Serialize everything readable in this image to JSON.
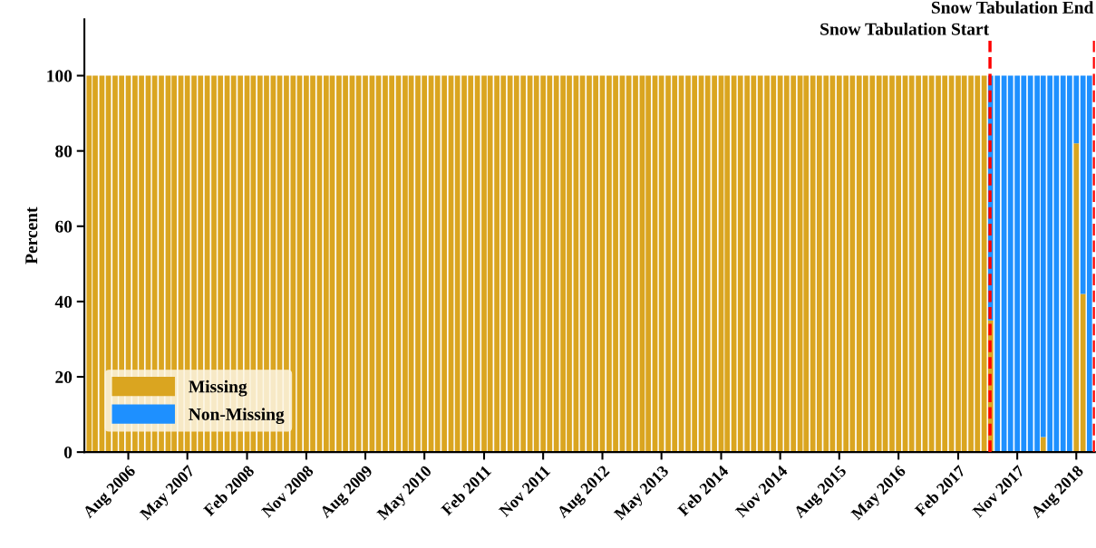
{
  "chart_data": {
    "type": "bar",
    "stacked": true,
    "ylabel": "Percent",
    "x": [
      "2006-02",
      "2006-03",
      "2006-04",
      "2006-05",
      "2006-06",
      "2006-07",
      "2006-08",
      "2006-09",
      "2006-10",
      "2006-11",
      "2006-12",
      "2007-01",
      "2007-02",
      "2007-03",
      "2007-04",
      "2007-05",
      "2007-06",
      "2007-07",
      "2007-08",
      "2007-09",
      "2007-10",
      "2007-11",
      "2007-12",
      "2008-01",
      "2008-02",
      "2008-03",
      "2008-04",
      "2008-05",
      "2008-06",
      "2008-07",
      "2008-08",
      "2008-09",
      "2008-10",
      "2008-11",
      "2008-12",
      "2009-01",
      "2009-02",
      "2009-03",
      "2009-04",
      "2009-05",
      "2009-06",
      "2009-07",
      "2009-08",
      "2009-09",
      "2009-10",
      "2009-11",
      "2009-12",
      "2010-01",
      "2010-02",
      "2010-03",
      "2010-04",
      "2010-05",
      "2010-06",
      "2010-07",
      "2010-08",
      "2010-09",
      "2010-10",
      "2010-11",
      "2010-12",
      "2011-01",
      "2011-02",
      "2011-03",
      "2011-04",
      "2011-05",
      "2011-06",
      "2011-07",
      "2011-08",
      "2011-09",
      "2011-10",
      "2011-11",
      "2011-12",
      "2012-01",
      "2012-02",
      "2012-03",
      "2012-04",
      "2012-05",
      "2012-06",
      "2012-07",
      "2012-08",
      "2012-09",
      "2012-10",
      "2012-11",
      "2012-12",
      "2013-01",
      "2013-02",
      "2013-03",
      "2013-04",
      "2013-05",
      "2013-06",
      "2013-07",
      "2013-08",
      "2013-09",
      "2013-10",
      "2013-11",
      "2013-12",
      "2014-01",
      "2014-02",
      "2014-03",
      "2014-04",
      "2014-05",
      "2014-06",
      "2014-07",
      "2014-08",
      "2014-09",
      "2014-10",
      "2014-11",
      "2014-12",
      "2015-01",
      "2015-02",
      "2015-03",
      "2015-04",
      "2015-05",
      "2015-06",
      "2015-07",
      "2015-08",
      "2015-09",
      "2015-10",
      "2015-11",
      "2015-12",
      "2016-01",
      "2016-02",
      "2016-03",
      "2016-04",
      "2016-05",
      "2016-06",
      "2016-07",
      "2016-08",
      "2016-09",
      "2016-10",
      "2016-11",
      "2016-12",
      "2017-01",
      "2017-02",
      "2017-03",
      "2017-04",
      "2017-05",
      "2017-06",
      "2017-07",
      "2017-08",
      "2017-09",
      "2017-10",
      "2017-11",
      "2017-12",
      "2018-01",
      "2018-02",
      "2018-03",
      "2018-04",
      "2018-05",
      "2018-06",
      "2018-07",
      "2018-08",
      "2018-09",
      "2018-10"
    ],
    "series": [
      {
        "name": "Missing",
        "color": "#daa520",
        "values": [
          100,
          100,
          100,
          100,
          100,
          100,
          100,
          100,
          100,
          100,
          100,
          100,
          100,
          100,
          100,
          100,
          100,
          100,
          100,
          100,
          100,
          100,
          100,
          100,
          100,
          100,
          100,
          100,
          100,
          100,
          100,
          100,
          100,
          100,
          100,
          100,
          100,
          100,
          100,
          100,
          100,
          100,
          100,
          100,
          100,
          100,
          100,
          100,
          100,
          100,
          100,
          100,
          100,
          100,
          100,
          100,
          100,
          100,
          100,
          100,
          100,
          100,
          100,
          100,
          100,
          100,
          100,
          100,
          100,
          100,
          100,
          100,
          100,
          100,
          100,
          100,
          100,
          100,
          100,
          100,
          100,
          100,
          100,
          100,
          100,
          100,
          100,
          100,
          100,
          100,
          100,
          100,
          100,
          100,
          100,
          100,
          100,
          100,
          100,
          100,
          100,
          100,
          100,
          100,
          100,
          100,
          100,
          100,
          100,
          100,
          100,
          100,
          100,
          100,
          100,
          100,
          100,
          100,
          100,
          100,
          100,
          100,
          100,
          100,
          100,
          100,
          100,
          100,
          100,
          100,
          100,
          100,
          100,
          100,
          100,
          100,
          100,
          35,
          0,
          0,
          0,
          0,
          0,
          0,
          0,
          4,
          0,
          0,
          0,
          0,
          82,
          42,
          0
        ]
      },
      {
        "name": "Non-Missing",
        "color": "#1e90ff",
        "values": [
          0,
          0,
          0,
          0,
          0,
          0,
          0,
          0,
          0,
          0,
          0,
          0,
          0,
          0,
          0,
          0,
          0,
          0,
          0,
          0,
          0,
          0,
          0,
          0,
          0,
          0,
          0,
          0,
          0,
          0,
          0,
          0,
          0,
          0,
          0,
          0,
          0,
          0,
          0,
          0,
          0,
          0,
          0,
          0,
          0,
          0,
          0,
          0,
          0,
          0,
          0,
          0,
          0,
          0,
          0,
          0,
          0,
          0,
          0,
          0,
          0,
          0,
          0,
          0,
          0,
          0,
          0,
          0,
          0,
          0,
          0,
          0,
          0,
          0,
          0,
          0,
          0,
          0,
          0,
          0,
          0,
          0,
          0,
          0,
          0,
          0,
          0,
          0,
          0,
          0,
          0,
          0,
          0,
          0,
          0,
          0,
          0,
          0,
          0,
          0,
          0,
          0,
          0,
          0,
          0,
          0,
          0,
          0,
          0,
          0,
          0,
          0,
          0,
          0,
          0,
          0,
          0,
          0,
          0,
          0,
          0,
          0,
          0,
          0,
          0,
          0,
          0,
          0,
          0,
          0,
          0,
          0,
          0,
          0,
          0,
          0,
          0,
          65,
          100,
          100,
          100,
          100,
          100,
          100,
          100,
          96,
          100,
          100,
          100,
          100,
          18,
          58,
          100
        ]
      }
    ],
    "xlim": [
      "2006-01-10",
      "2018-10-26"
    ],
    "xticks": [
      {
        "value": "2006-08",
        "label": "Aug 2006"
      },
      {
        "value": "2007-05",
        "label": "May 2007"
      },
      {
        "value": "2008-02",
        "label": "Feb 2008"
      },
      {
        "value": "2008-11",
        "label": "Nov 2008"
      },
      {
        "value": "2009-08",
        "label": "Aug 2009"
      },
      {
        "value": "2010-05",
        "label": "May 2010"
      },
      {
        "value": "2011-02",
        "label": "Feb 2011"
      },
      {
        "value": "2011-11",
        "label": "Nov 2011"
      },
      {
        "value": "2012-08",
        "label": "Aug 2012"
      },
      {
        "value": "2013-05",
        "label": "May 2013"
      },
      {
        "value": "2014-02",
        "label": "Feb 2014"
      },
      {
        "value": "2014-11",
        "label": "Nov 2014"
      },
      {
        "value": "2015-08",
        "label": "Aug 2015"
      },
      {
        "value": "2016-05",
        "label": "May 2016"
      },
      {
        "value": "2017-02",
        "label": "Feb 2017"
      },
      {
        "value": "2017-11",
        "label": "Nov 2017"
      },
      {
        "value": "2018-08",
        "label": "Aug 2018"
      }
    ],
    "ylim": [
      0,
      115
    ],
    "yticks": [
      0,
      20,
      40,
      60,
      80,
      100
    ],
    "ref_lines": [
      {
        "axis": "x",
        "value": "2017-06-28",
        "label": "Snow Tabulation Start",
        "color": "#ff0000",
        "line_style": "dashed"
      },
      {
        "axis": "x",
        "value": "2018-10-24",
        "label": "Snow Tabulation End",
        "color": "#ff0000",
        "line_style": "dashed"
      }
    ],
    "legend": "bottom left",
    "grid": false
  }
}
